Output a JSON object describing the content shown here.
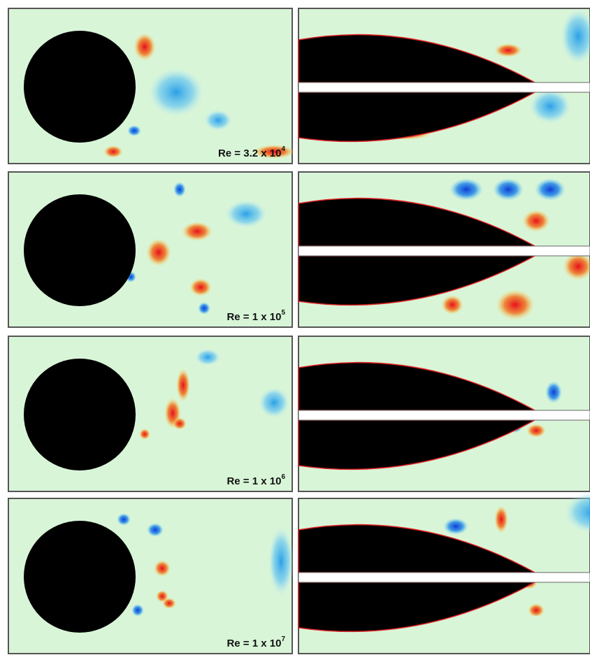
{
  "rows": [
    {
      "label": "Re = 3.2 x 10",
      "exponent": "4"
    },
    {
      "label": "Re = 1 x 10",
      "exponent": "5"
    },
    {
      "label": "Re = 1 x 10",
      "exponent": "6"
    },
    {
      "label": "Re = 1 x 10",
      "exponent": "7"
    }
  ]
}
